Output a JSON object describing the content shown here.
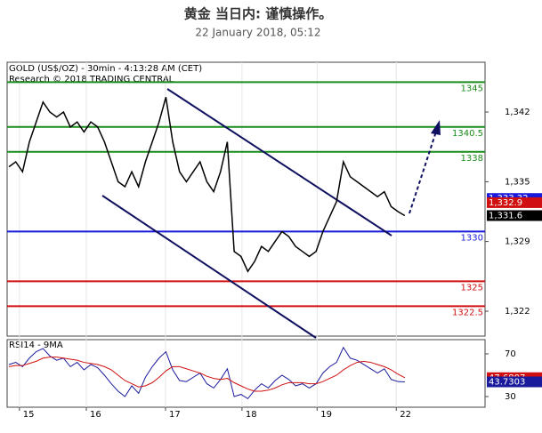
{
  "header": {
    "title": "黄金 当日内: 谨慎操作。",
    "subtitle": "22 January 2018, 05:12"
  },
  "chart_data": [
    {
      "type": "line",
      "title": "GOLD (US$/OZ) - 30min - 4:13:28 AM (CET)",
      "subtitle": "Research © 2018 TRADING CENTRAL",
      "xlim": [
        0,
        70
      ],
      "xticks": [
        {
          "value": 1.8,
          "label": "15"
        },
        {
          "value": 11.6,
          "label": "16"
        },
        {
          "value": 23.2,
          "label": "17"
        },
        {
          "value": 34.4,
          "label": "18"
        },
        {
          "value": 45.4,
          "label": "19"
        },
        {
          "value": 57,
          "label": "22"
        }
      ],
      "ylim": [
        1319.5,
        1347
      ],
      "yticks": [
        {
          "value": 1342,
          "label": "1,342"
        },
        {
          "value": 1335,
          "label": "1,335"
        },
        {
          "value": 1329,
          "label": "1,329"
        },
        {
          "value": 1322,
          "label": "1,322"
        }
      ],
      "series": [
        {
          "name": "GOLD",
          "color": "#000000",
          "values": [
            1336.5,
            1337,
            1336,
            1339,
            1341,
            1343,
            1342,
            1341.5,
            1342,
            1340.5,
            1341,
            1340,
            1341,
            1340.5,
            1339,
            1337,
            1335,
            1334.5,
            1336,
            1334.5,
            1337,
            1339,
            1341,
            1343.5,
            1339,
            1336,
            1335,
            1336,
            1337,
            1335,
            1334,
            1336,
            1339,
            1328,
            1327.5,
            1326,
            1327,
            1328.5,
            1328,
            1329,
            1330,
            1329.5,
            1328.5,
            1328,
            1327.5,
            1328,
            1330,
            1331.5,
            1333,
            1337,
            1335.5,
            1335,
            1334.5,
            1334,
            1333.5,
            1334,
            1332.5,
            1332,
            1331.6
          ]
        }
      ],
      "levels": [
        {
          "value": 1345,
          "color": "#1a8c1a"
        },
        {
          "value": 1340.5,
          "color": "#1a8c1a"
        },
        {
          "value": 1338,
          "color": "#1a8c1a"
        },
        {
          "value": 1330,
          "color": "#1a1adc"
        },
        {
          "value": 1325,
          "color": "#d01010"
        },
        {
          "value": 1322.5,
          "color": "#d01010"
        }
      ],
      "price_tags": [
        {
          "value": 1333.32,
          "label": "1,333.32",
          "color": "#1a1adc"
        },
        {
          "value": 1332.9,
          "label": "1,332.9",
          "color": "#d01010"
        },
        {
          "value": 1331.6,
          "label": "1,331.6",
          "color": "#000000"
        }
      ]
    },
    {
      "type": "line",
      "title": "RSI14 - 9MA",
      "xlim": [
        0,
        70
      ],
      "ylim": [
        20,
        83.3
      ],
      "yticks": [
        70,
        30
      ],
      "series": [
        {
          "name": "RSI14",
          "color": "#1a1a9c",
          "values": [
            60,
            62,
            58,
            66,
            72,
            75,
            68,
            64,
            66,
            58,
            62,
            55,
            60,
            57,
            50,
            42,
            35,
            30,
            40,
            33,
            48,
            58,
            66,
            72,
            55,
            45,
            44,
            48,
            52,
            42,
            38,
            46,
            56,
            30,
            32,
            28,
            36,
            42,
            38,
            45,
            50,
            46,
            40,
            42,
            38,
            42,
            52,
            58,
            62,
            76,
            66,
            64,
            60,
            56,
            52,
            56,
            46,
            44,
            43.7303
          ]
        },
        {
          "name": "9MA",
          "color": "#d01010",
          "values": [
            58,
            59,
            59,
            61,
            63,
            66,
            67,
            67,
            66,
            65,
            64,
            62,
            61,
            60,
            58,
            55,
            50,
            45,
            42,
            39,
            40,
            43,
            48,
            54,
            58,
            58,
            56,
            54,
            52,
            49,
            47,
            46,
            47,
            43,
            40,
            37,
            35,
            35,
            36,
            38,
            41,
            43,
            43,
            43,
            42,
            42,
            44,
            47,
            50,
            55,
            59,
            62,
            63,
            62,
            60,
            58,
            55,
            51,
            47.6807
          ]
        }
      ],
      "price_tags": [
        {
          "value": 47.6807,
          "label": "47.6807",
          "color": "#d01010"
        },
        {
          "value": 43.7303,
          "label": "43.7303",
          "color": "#1a1a9c"
        }
      ]
    }
  ]
}
